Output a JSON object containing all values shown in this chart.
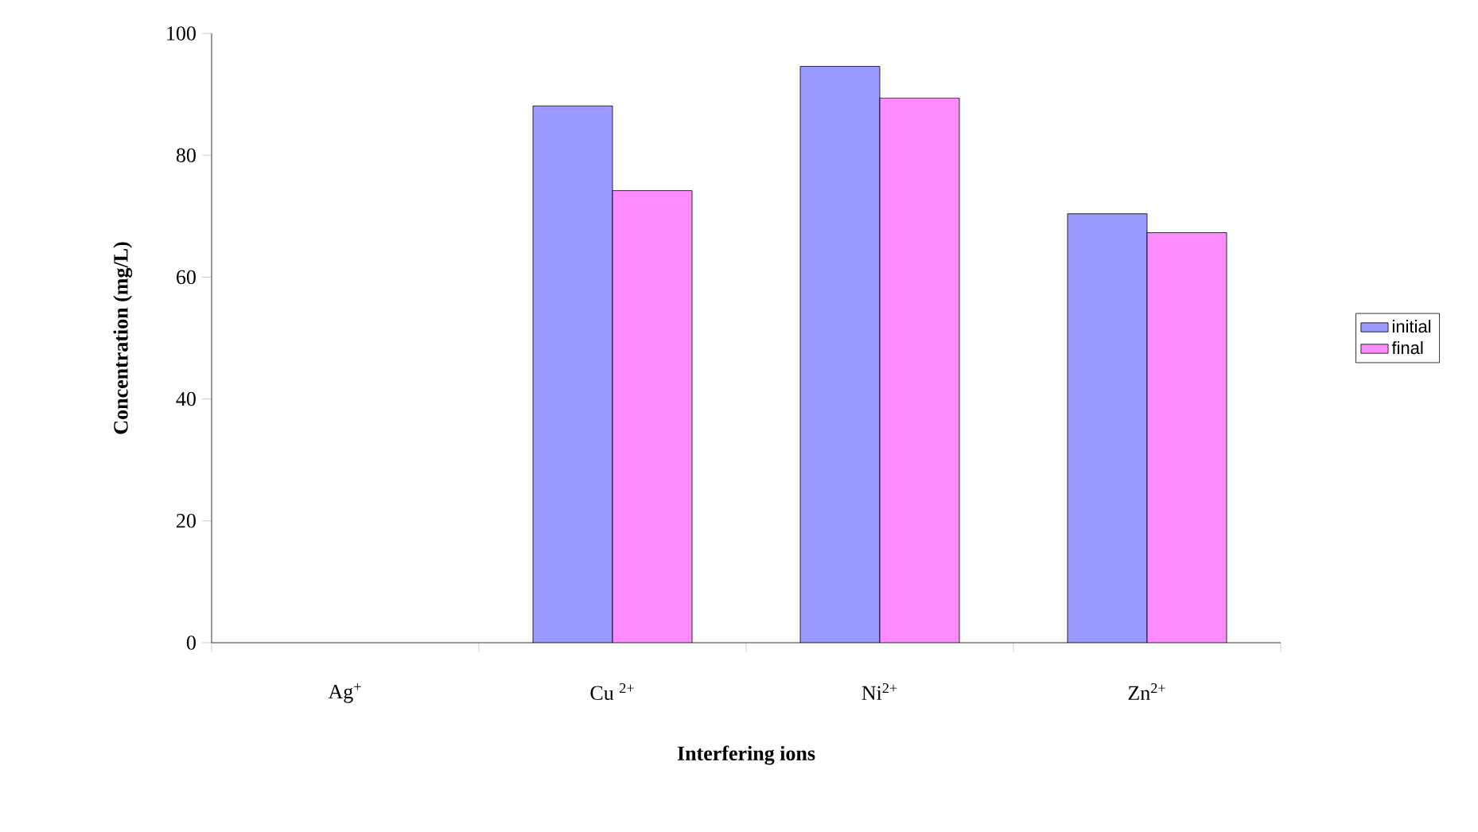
{
  "chart_data": {
    "type": "bar",
    "xlabel": "Interfering ions",
    "ylabel": "Concentration (mg/L)",
    "categories": [
      "Ag$^{+}$",
      "Cu $^{2+}$",
      "Ni$^{2+}$",
      "Zn$^{2+}$"
    ],
    "series": [
      {
        "name": "initial",
        "color": "#9999ff",
        "values": [
          null,
          88.1,
          94.6,
          70.4
        ]
      },
      {
        "name": "final",
        "color": "#ff8cff",
        "values": [
          null,
          74.2,
          89.4,
          67.3
        ]
      }
    ],
    "ylim": [
      0,
      100
    ],
    "yticks": [
      0,
      20,
      40,
      60,
      80,
      100
    ],
    "legend": "right"
  }
}
